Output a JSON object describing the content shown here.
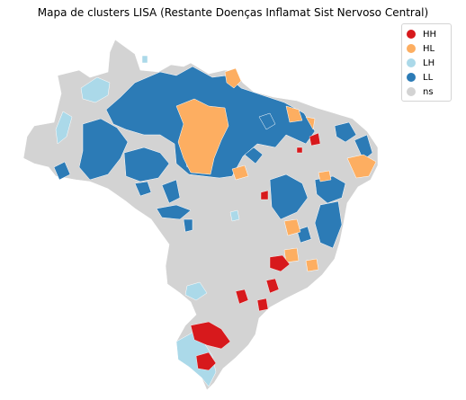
{
  "title": "Mapa de clusters LISA (Restante Doenças Inflamat Sist Nervoso Central)",
  "legend": {
    "items": [
      {
        "label": "HH",
        "color": "#d7191c"
      },
      {
        "label": "HL",
        "color": "#fdae61"
      },
      {
        "label": "LH",
        "color": "#abd9e9"
      },
      {
        "label": "LL",
        "color": "#2c7bb6"
      },
      {
        "label": "ns",
        "color": "#d3d3d3"
      }
    ]
  }
}
